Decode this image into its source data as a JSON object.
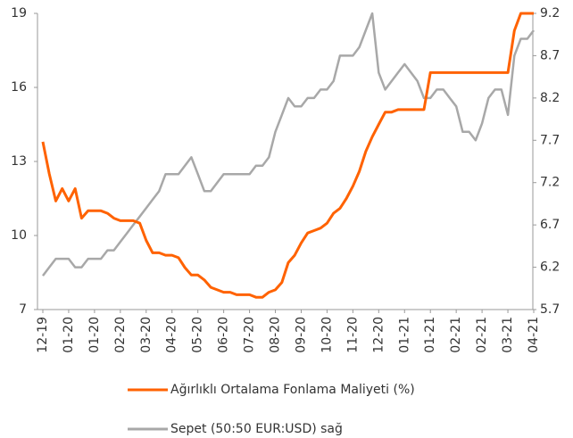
{
  "chart_data": {
    "type": "line",
    "categories": [
      "12-19",
      null,
      null,
      null,
      "01-20",
      null,
      null,
      null,
      "01-20",
      null,
      null,
      null,
      "02-20",
      null,
      null,
      null,
      "03-20",
      null,
      null,
      null,
      "04-20",
      null,
      null,
      null,
      "05-20",
      null,
      null,
      null,
      "06-20",
      null,
      null,
      null,
      "07-20",
      null,
      null,
      null,
      "08-20",
      null,
      null,
      null,
      "09-20",
      null,
      null,
      null,
      "10-20",
      null,
      null,
      null,
      "11-20",
      null,
      null,
      null,
      "12-20",
      null,
      null,
      null,
      "01-21",
      null,
      null,
      null,
      "01-21",
      null,
      null,
      null,
      "02-21",
      null,
      null,
      null,
      "02-21",
      null,
      null,
      null,
      "03-21",
      null,
      null,
      null,
      "04-21"
    ],
    "series": [
      {
        "name": "Ağırlıklı Ortalama Fonlama Maliyeti (%)",
        "color": "#ff6200",
        "axis": "y",
        "values": [
          13.8,
          12.5,
          11.4,
          11.9,
          11.4,
          11.9,
          10.7,
          11.0,
          11.0,
          11.0,
          10.9,
          10.7,
          10.6,
          10.6,
          10.6,
          10.5,
          9.8,
          9.3,
          9.3,
          9.2,
          9.2,
          9.1,
          8.7,
          8.4,
          8.4,
          8.2,
          7.9,
          7.8,
          7.7,
          7.7,
          7.6,
          7.6,
          7.6,
          7.5,
          7.5,
          7.7,
          7.8,
          8.1,
          8.9,
          9.2,
          9.7,
          10.1,
          10.2,
          10.3,
          10.5,
          10.9,
          11.1,
          11.5,
          12.0,
          12.6,
          13.4,
          14.0,
          14.5,
          15.0,
          15.0,
          15.1,
          15.1,
          15.1,
          15.1,
          15.1,
          16.6,
          16.6,
          16.6,
          16.6,
          16.6,
          16.6,
          16.6,
          16.6,
          16.6,
          16.6,
          16.6,
          16.6,
          16.6,
          18.3,
          19.0,
          19.0,
          19.0
        ]
      },
      {
        "name": "Sepet (50:50 EUR:USD) sağ",
        "color": "#a8a8a8",
        "axis": "y2",
        "values": [
          6.1,
          6.2,
          6.3,
          6.3,
          6.3,
          6.2,
          6.2,
          6.3,
          6.3,
          6.3,
          6.4,
          6.4,
          6.5,
          6.6,
          6.7,
          6.8,
          6.9,
          7.0,
          7.1,
          7.3,
          7.3,
          7.3,
          7.4,
          7.5,
          7.3,
          7.1,
          7.1,
          7.2,
          7.3,
          7.3,
          7.3,
          7.3,
          7.3,
          7.4,
          7.4,
          7.5,
          7.8,
          8.0,
          8.2,
          8.1,
          8.1,
          8.2,
          8.2,
          8.3,
          8.3,
          8.4,
          8.7,
          8.7,
          8.7,
          8.8,
          9.0,
          9.2,
          8.5,
          8.3,
          8.4,
          8.5,
          8.6,
          8.5,
          8.4,
          8.2,
          8.2,
          8.3,
          8.3,
          8.2,
          8.1,
          7.8,
          7.8,
          7.7,
          7.9,
          8.2,
          8.3,
          8.3,
          8.0,
          8.7,
          8.9,
          8.9,
          9.0
        ]
      }
    ],
    "ylim": [
      7,
      19
    ],
    "yticks": [
      7,
      10,
      13,
      16,
      19
    ],
    "y2lim": [
      5.7,
      9.2
    ],
    "y2ticks": [
      5.7,
      6.2,
      6.7,
      7.2,
      7.7,
      8.2,
      8.7,
      9.2
    ]
  }
}
